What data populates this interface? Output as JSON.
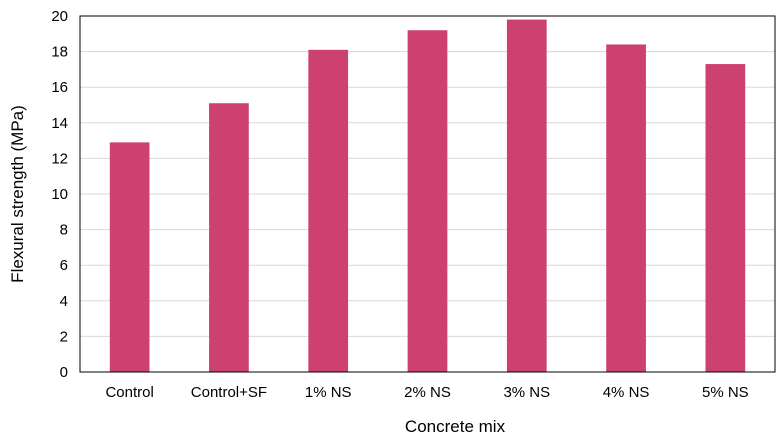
{
  "chart_data": {
    "type": "bar",
    "title": "",
    "xlabel": "Concrete mix",
    "ylabel": "Flexural strength (MPa)",
    "categories": [
      "Control",
      "Control+SF",
      "1% NS",
      "2% NS",
      "3% NS",
      "4% NS",
      "5% NS"
    ],
    "values": [
      12.9,
      15.1,
      18.1,
      19.2,
      19.8,
      18.4,
      17.3
    ],
    "ylim": [
      0,
      20
    ],
    "yticks": [
      "0",
      "2",
      "4",
      "6",
      "8",
      "10",
      "12",
      "14",
      "16",
      "18",
      "20"
    ],
    "grid": true,
    "legend": "none",
    "colors": {
      "bar": "#cc4170",
      "grid": "#d9d9d9",
      "axis": "#000000"
    }
  }
}
